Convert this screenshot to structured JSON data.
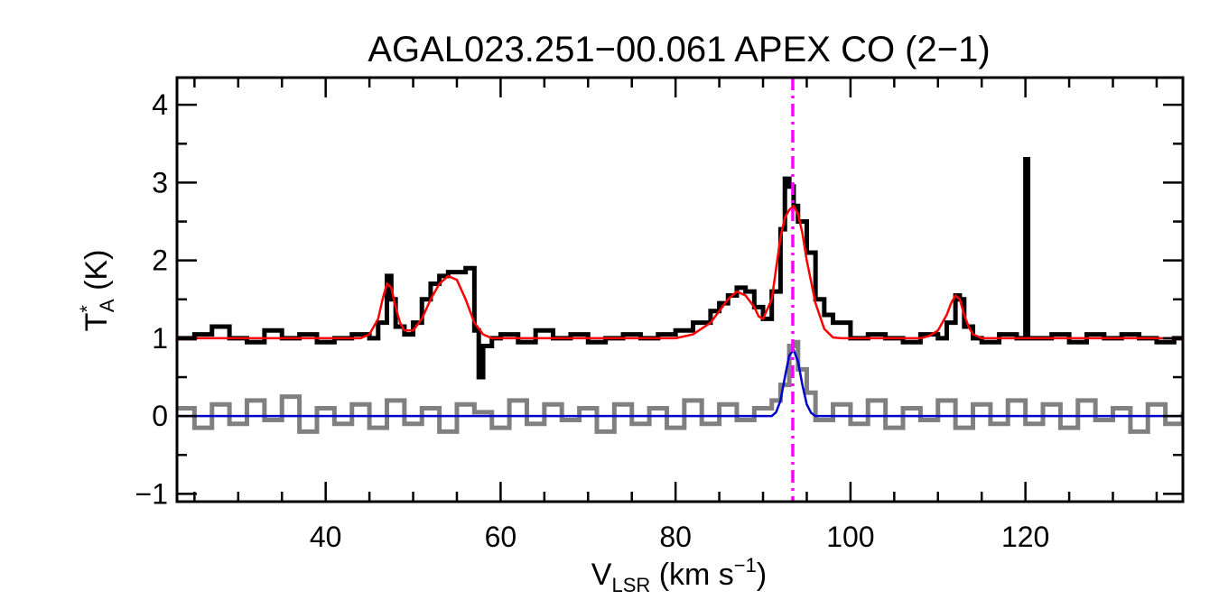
{
  "chart_data": {
    "type": "line",
    "title": "AGAL023.251−00.061   APEX CO (2−1)",
    "xlabel": {
      "main": "V",
      "sub": "LSR",
      "rest": " (km s",
      "sup": "−1",
      "end": ")"
    },
    "ylabel": {
      "main": "T",
      "sup": "*",
      "sub": "A",
      "rest": " (K)"
    },
    "xlim": [
      23,
      138
    ],
    "ylim": [
      -1.1,
      4.35
    ],
    "x_ticks": [
      40,
      60,
      80,
      100,
      120
    ],
    "x_tick_labels": [
      "40",
      "60",
      "80",
      "100",
      "120"
    ],
    "y_ticks": [
      -1,
      0,
      1,
      2,
      3,
      4
    ],
    "y_tick_labels": [
      "−1",
      "0",
      "1",
      "2",
      "3",
      "4"
    ],
    "x_minor_step": 5,
    "y_minor_step": 0.5,
    "vline": {
      "x": 93.4,
      "color": "#ff00ff",
      "style": "dash-dot"
    },
    "series": [
      {
        "role": "spectrum",
        "color": "#000000",
        "style": "step",
        "x": [
          23,
          25,
          27,
          29,
          31,
          33,
          35,
          37,
          39,
          41,
          43,
          45,
          46,
          47,
          47.5,
          48,
          49,
          50,
          51,
          52,
          53,
          54,
          55,
          56,
          57,
          57.5,
          58,
          59,
          60,
          62,
          64,
          66,
          68,
          70,
          72,
          74,
          76,
          78,
          80,
          82,
          84,
          85,
          86,
          87,
          88,
          89,
          90,
          91,
          92,
          92.5,
          93,
          93.5,
          94,
          95,
          96,
          97,
          98,
          100,
          102,
          104,
          106,
          108,
          110,
          111,
          112,
          112.5,
          113,
          114,
          115,
          117,
          119,
          119.8,
          120,
          120.3,
          121,
          123,
          125,
          127,
          129,
          131,
          133,
          135,
          137,
          138
        ],
        "y": [
          1.0,
          1.05,
          1.15,
          1.0,
          0.95,
          1.1,
          1.0,
          1.05,
          0.95,
          1.0,
          1.05,
          1.0,
          1.2,
          1.8,
          1.5,
          1.15,
          1.05,
          1.2,
          1.5,
          1.7,
          1.8,
          1.85,
          1.85,
          1.9,
          1.1,
          0.5,
          0.9,
          1.0,
          1.05,
          0.95,
          1.1,
          1.0,
          1.05,
          0.95,
          1.0,
          1.05,
          1.0,
          1.05,
          1.1,
          1.2,
          1.35,
          1.45,
          1.55,
          1.65,
          1.6,
          1.4,
          1.25,
          1.6,
          2.4,
          3.05,
          2.95,
          2.7,
          2.5,
          2.1,
          1.5,
          1.3,
          1.2,
          1.0,
          1.05,
          1.0,
          0.95,
          1.05,
          1.0,
          1.2,
          1.55,
          1.5,
          1.15,
          1.0,
          0.95,
          1.05,
          1.0,
          1.0,
          3.3,
          1.0,
          1.0,
          1.05,
          0.95,
          1.05,
          1.0,
          1.05,
          1.0,
          0.95,
          1.0,
          1.0
        ]
      },
      {
        "role": "fit",
        "color": "#ff0000",
        "style": "line",
        "x": [
          23,
          44,
          45,
          46,
          46.5,
          47,
          47.5,
          48,
          48.5,
          49,
          50,
          51,
          52,
          53,
          54,
          55,
          56,
          57,
          58,
          59,
          60,
          80,
          82,
          84,
          85,
          86,
          87,
          88,
          89,
          89.5,
          90,
          91,
          91.5,
          92,
          92.5,
          93,
          93.5,
          94,
          94.5,
          95,
          96,
          97,
          98,
          99,
          108,
          109,
          110,
          111,
          111.5,
          112,
          112.5,
          113,
          113.5,
          114,
          115,
          138
        ],
        "y": [
          1.0,
          1.0,
          1.05,
          1.25,
          1.5,
          1.7,
          1.65,
          1.4,
          1.2,
          1.1,
          1.1,
          1.25,
          1.5,
          1.7,
          1.8,
          1.75,
          1.5,
          1.2,
          1.05,
          1.0,
          1.0,
          1.0,
          1.05,
          1.2,
          1.35,
          1.5,
          1.6,
          1.55,
          1.4,
          1.28,
          1.25,
          1.5,
          1.9,
          2.3,
          2.55,
          2.65,
          2.7,
          2.6,
          2.35,
          2.0,
          1.45,
          1.12,
          1.01,
          1.0,
          1.0,
          1.03,
          1.1,
          1.3,
          1.45,
          1.55,
          1.5,
          1.3,
          1.15,
          1.05,
          1.0,
          1.0
        ]
      },
      {
        "role": "residual",
        "color": "#808080",
        "style": "step",
        "x": [
          23,
          25,
          27,
          29,
          31,
          33,
          35,
          37,
          39,
          41,
          43,
          45,
          47,
          49,
          51,
          53,
          55,
          57,
          59,
          61,
          63,
          65,
          67,
          69,
          71,
          73,
          75,
          77,
          79,
          81,
          83,
          85,
          87,
          89,
          91,
          92,
          93,
          93.5,
          94,
          95,
          96,
          98,
          100,
          102,
          104,
          106,
          108,
          110,
          112,
          114,
          116,
          118,
          120,
          122,
          124,
          126,
          128,
          130,
          132,
          134,
          136,
          138
        ],
        "y": [
          0.1,
          -0.15,
          0.15,
          -0.1,
          0.2,
          -0.05,
          0.25,
          -0.2,
          0.1,
          -0.1,
          0.15,
          -0.15,
          0.2,
          -0.1,
          0.1,
          -0.2,
          0.15,
          0.05,
          -0.15,
          0.2,
          -0.1,
          0.15,
          -0.05,
          0.1,
          -0.2,
          0.15,
          -0.1,
          0.1,
          -0.15,
          0.2,
          -0.1,
          0.15,
          -0.05,
          0.1,
          0.2,
          0.4,
          0.9,
          0.95,
          0.6,
          0.3,
          -0.05,
          0.15,
          -0.1,
          0.2,
          -0.15,
          0.1,
          -0.05,
          0.2,
          -0.15,
          0.15,
          -0.1,
          0.2,
          -0.1,
          0.15,
          -0.15,
          0.2,
          -0.05,
          0.1,
          -0.2,
          0.15,
          -0.1,
          0.05
        ]
      },
      {
        "role": "residual-fit",
        "color": "#0000cc",
        "style": "line",
        "x": [
          23,
          91,
          91.5,
          92,
          92.5,
          93,
          93.5,
          94,
          94.5,
          95,
          95.5,
          96,
          138
        ],
        "y": [
          0.0,
          0.0,
          0.05,
          0.2,
          0.5,
          0.78,
          0.85,
          0.7,
          0.4,
          0.15,
          0.04,
          0.0,
          0.0
        ]
      }
    ]
  }
}
